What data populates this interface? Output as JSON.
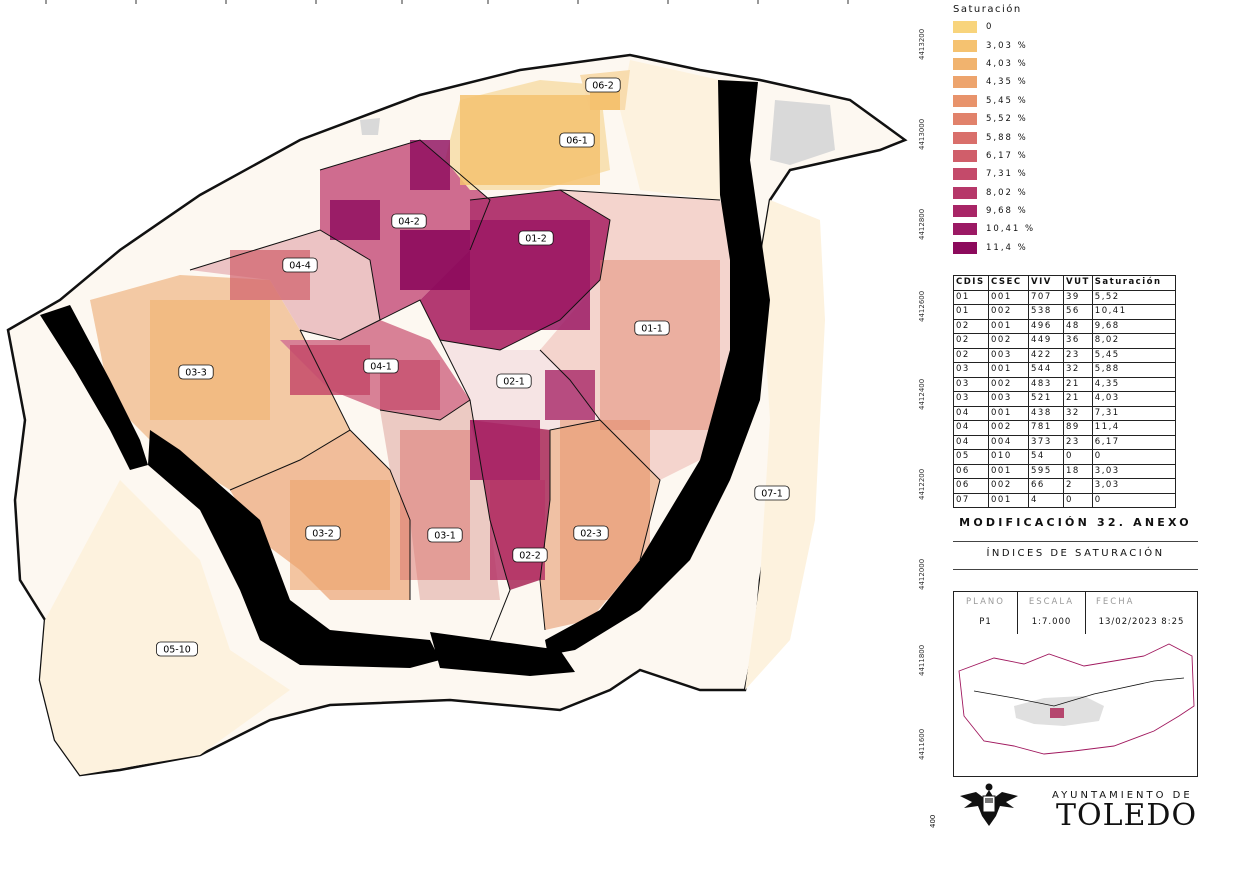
{
  "legend": {
    "title": "Saturación",
    "items": [
      {
        "label": "0",
        "color": "#f8d47c"
      },
      {
        "label": "3,03 %",
        "color": "#f5c270"
      },
      {
        "label": "4,03 %",
        "color": "#f1b36e"
      },
      {
        "label": "4,35 %",
        "color": "#eda46d"
      },
      {
        "label": "5,45 %",
        "color": "#e8936b"
      },
      {
        "label": "5,52 %",
        "color": "#e1826b"
      },
      {
        "label": "5,88 %",
        "color": "#d96f6b"
      },
      {
        "label": "6,17 %",
        "color": "#d05e6a"
      },
      {
        "label": "7,31 %",
        "color": "#c44a6a"
      },
      {
        "label": "8,02 %",
        "color": "#b63769"
      },
      {
        "label": "9,68 %",
        "color": "#a82566"
      },
      {
        "label": "10,41 %",
        "color": "#9b1964"
      },
      {
        "label": "11,4 %",
        "color": "#8c0a5c"
      }
    ]
  },
  "table": {
    "headers": [
      "CDIS",
      "CSEC",
      "VIV",
      "VUT",
      "Saturación"
    ],
    "rows": [
      [
        "01",
        "001",
        "707",
        "39",
        "5,52"
      ],
      [
        "01",
        "002",
        "538",
        "56",
        "10,41"
      ],
      [
        "02",
        "001",
        "496",
        "48",
        "9,68"
      ],
      [
        "02",
        "002",
        "449",
        "36",
        "8,02"
      ],
      [
        "02",
        "003",
        "422",
        "23",
        "5,45"
      ],
      [
        "03",
        "001",
        "544",
        "32",
        "5,88"
      ],
      [
        "03",
        "002",
        "483",
        "21",
        "4,35"
      ],
      [
        "03",
        "003",
        "521",
        "21",
        "4,03"
      ],
      [
        "04",
        "001",
        "438",
        "32",
        "7,31"
      ],
      [
        "04",
        "002",
        "781",
        "89",
        "11,4"
      ],
      [
        "04",
        "004",
        "373",
        "23",
        "6,17"
      ],
      [
        "05",
        "010",
        "54",
        "0",
        "0"
      ],
      [
        "06",
        "001",
        "595",
        "18",
        "3,03"
      ],
      [
        "06",
        "002",
        "66",
        "2",
        "3,03"
      ],
      [
        "07",
        "001",
        "4",
        "0",
        "0"
      ]
    ]
  },
  "title": "MODIFICACIÓN 32. ANEXO",
  "subtitle": "ÍNDICES DE SATURACIÓN",
  "info": {
    "plano_label": "PLANO",
    "plano_value": "P1",
    "escala_label": "ESCALA",
    "escala_value": "1:7.000",
    "fecha_label": "FECHA",
    "fecha_value": "13/02/2023 8:25"
  },
  "organization": {
    "prefix": "AYUNTAMIENTO DE",
    "name": "TOLEDO"
  },
  "grid_labels": [
    "4413200",
    "4413000",
    "4412800",
    "4412600",
    "4412400",
    "4412200",
    "4412000",
    "4411800",
    "4411600",
    "400"
  ],
  "map": {
    "sections": [
      {
        "label": "06-2",
        "color": "#f5c270"
      },
      {
        "label": "06-1",
        "color": "#f5c270"
      },
      {
        "label": "04-2",
        "color": "#8c0a5c"
      },
      {
        "label": "01-2",
        "color": "#9b1964"
      },
      {
        "label": "04-4",
        "color": "#d05e6a"
      },
      {
        "label": "01-1",
        "color": "#e1826b"
      },
      {
        "label": "03-3",
        "color": "#f1b36e"
      },
      {
        "label": "04-1",
        "color": "#c44a6a"
      },
      {
        "label": "02-1",
        "color": "#a82566"
      },
      {
        "label": "07-1",
        "color": "#f8d47c"
      },
      {
        "label": "03-2",
        "color": "#eda46d"
      },
      {
        "label": "03-1",
        "color": "#d96f6b"
      },
      {
        "label": "02-3",
        "color": "#e8936b"
      },
      {
        "label": "02-2",
        "color": "#b63769"
      },
      {
        "label": "05-10",
        "color": "#f8d47c"
      }
    ]
  }
}
